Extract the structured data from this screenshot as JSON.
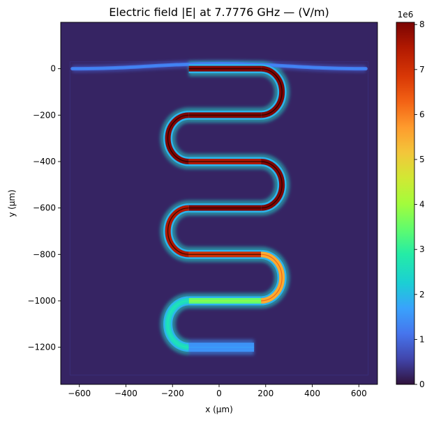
{
  "chart_data": {
    "type": "heatmap",
    "title": "Electric field |E| at 7.7776 GHz — (V/m)",
    "xlabel": "x (µm)",
    "ylabel": "y (µm)",
    "xlim": [
      -680,
      680
    ],
    "ylim": [
      -1360,
      200
    ],
    "xticks": [
      -600,
      -400,
      -200,
      0,
      200,
      400,
      600
    ],
    "xtick_labels": [
      "−600",
      "−400",
      "−200",
      "0",
      "200",
      "400",
      "600"
    ],
    "yticks": [
      0,
      -200,
      -400,
      -600,
      -800,
      -1000,
      -1200
    ],
    "ytick_labels": [
      "0",
      "−200",
      "−400",
      "−600",
      "−800",
      "−1000",
      "−1200"
    ],
    "colorbar": {
      "colormap": "turbo",
      "min": 0,
      "max": 8.05,
      "scale_label": "1e6",
      "ticks": [
        0,
        1,
        2,
        3,
        4,
        5,
        6,
        7,
        8
      ],
      "tick_labels": [
        "0",
        "1",
        "2",
        "3",
        "4",
        "5",
        "6",
        "7",
        "8"
      ]
    },
    "background_value": 0.2,
    "feedline": {
      "x_range": [
        -630,
        630
      ],
      "y": 0,
      "field_value": 1.2
    },
    "meander_resonator": {
      "start": [
        -130,
        0
      ],
      "straight_x_range": [
        -130,
        180
      ],
      "left_turn_x": -230,
      "right_turn_x": 270,
      "row_y": [
        0,
        -200,
        -400,
        -600,
        -800,
        -1000,
        -1200
      ],
      "segment_field_values": [
        8.0,
        8.0,
        8.0,
        8.0,
        7.5,
        8.0,
        8.0,
        7.5,
        7.0,
        5.5,
        3.5,
        2.5,
        1.5
      ],
      "end": [
        150,
        -1200
      ]
    }
  },
  "colors": {
    "plot_background": "#30123b",
    "axis": "#000000",
    "hot_edge": "#7a0403"
  }
}
